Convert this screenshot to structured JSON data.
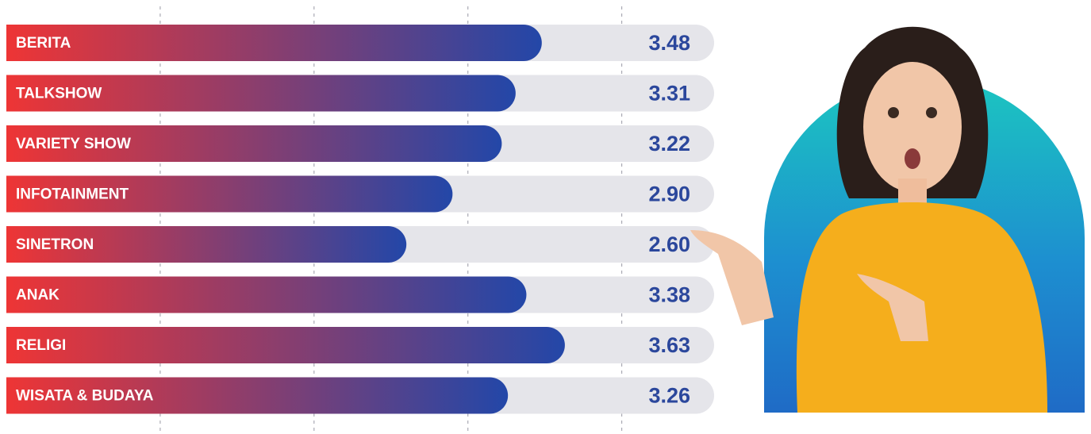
{
  "chart_data": {
    "type": "bar",
    "orientation": "horizontal",
    "categories": [
      "BERITA",
      "TALKSHOW",
      "VARIETY SHOW",
      "INFOTAINMENT",
      "SINETRON",
      "ANAK",
      "RELIGI",
      "WISATA & BUDAYA"
    ],
    "values": [
      3.48,
      3.31,
      3.22,
      2.9,
      2.6,
      3.38,
      3.63,
      3.26
    ],
    "value_labels": [
      "3.48",
      "3.31",
      "3.22",
      "2.90",
      "2.60",
      "3.38",
      "3.63",
      "3.26"
    ],
    "colors": [
      "#ee3535",
      "#2347a8"
    ],
    "track_color": "#e5e5ea",
    "label_color": "#2b479c",
    "xlim": [
      0,
      4.6
    ],
    "xticks": [
      1,
      2,
      3,
      4
    ],
    "grid": true
  }
}
